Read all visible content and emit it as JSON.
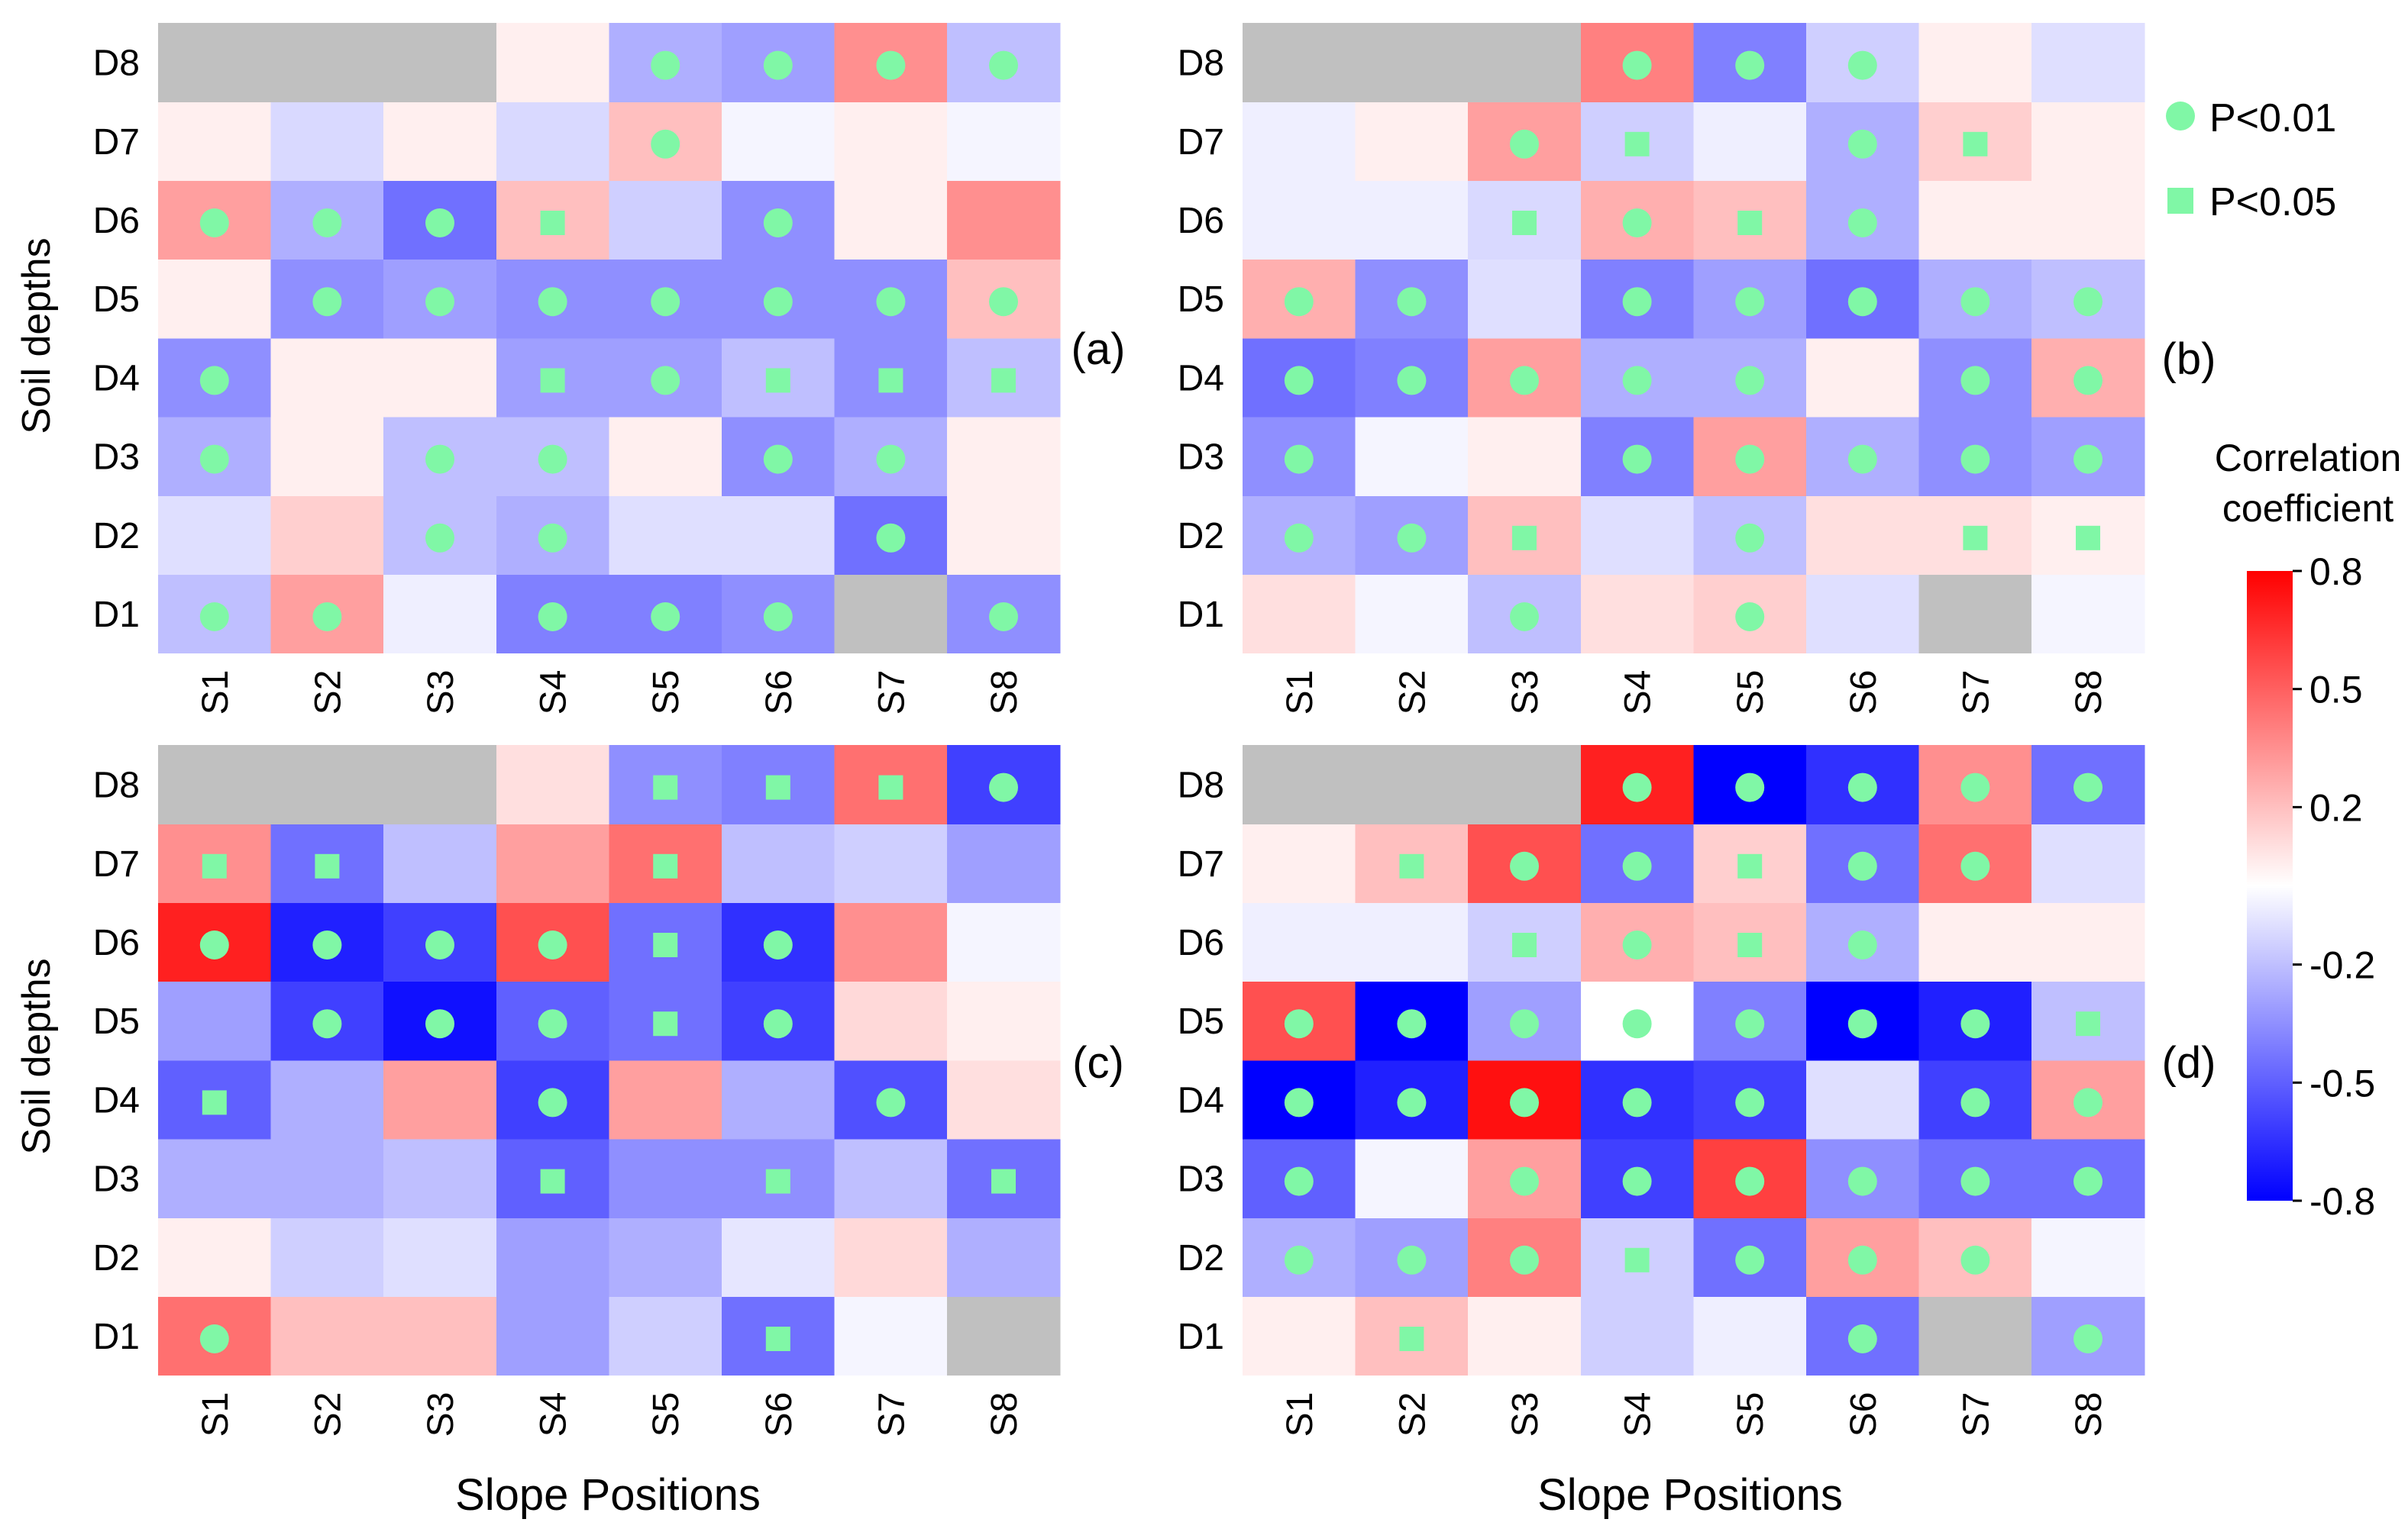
{
  "chart_data": {
    "type": "heatmap",
    "x_label": "Slope Positions",
    "y_label": "Soil depths",
    "x_categories": [
      "S1",
      "S2",
      "S3",
      "S4",
      "S5",
      "S6",
      "S7",
      "S8"
    ],
    "y_categories": [
      "D1",
      "D2",
      "D3",
      "D4",
      "D5",
      "D6",
      "D7",
      "D8"
    ],
    "colorbar": {
      "title_line1": "Correlation",
      "title_line2": "coefficient",
      "range": [
        -0.8,
        0.8
      ],
      "ticks": [
        0.8,
        0.5,
        0.2,
        -0.2,
        -0.5,
        -0.8
      ],
      "tick_labels": [
        "0.8",
        "0.5",
        "0.2",
        "-0.2",
        "-0.5",
        "-0.8"
      ],
      "colors": {
        "min": "#0000ff",
        "mid": "#ffffff",
        "max": "#ff0000",
        "missing": "#c0c0c0"
      }
    },
    "legend": {
      "items": [
        {
          "marker": "circle",
          "label": "P<0.01"
        },
        {
          "marker": "square",
          "label": "P<0.05"
        }
      ],
      "marker_color": "#80f7a6"
    },
    "marker_codes": {
      "c": "P<0.01",
      "s": "P<0.05",
      "": "not significant"
    },
    "panels": [
      {
        "label": "(a)",
        "values": [
          [
            -0.2,
            0.3,
            -0.05,
            -0.4,
            -0.4,
            -0.35,
            null,
            -0.35
          ],
          [
            -0.1,
            0.15,
            -0.2,
            -0.25,
            -0.1,
            -0.1,
            -0.45,
            0.05
          ],
          [
            -0.25,
            0.05,
            -0.2,
            -0.2,
            0.05,
            -0.35,
            -0.25,
            0.05
          ],
          [
            -0.35,
            0.05,
            0.05,
            -0.3,
            -0.3,
            -0.2,
            -0.35,
            -0.2
          ],
          [
            0.05,
            -0.35,
            -0.3,
            -0.35,
            -0.35,
            -0.35,
            -0.35,
            0.2
          ],
          [
            0.3,
            -0.25,
            -0.45,
            0.2,
            -0.15,
            -0.35,
            0.05,
            0.35
          ],
          [
            0.05,
            -0.12,
            0.05,
            -0.12,
            0.2,
            -0.03,
            0.05,
            -0.03
          ],
          [
            null,
            null,
            null,
            0.05,
            -0.25,
            -0.3,
            0.35,
            -0.2
          ]
        ],
        "markers": [
          [
            "c",
            "c",
            "",
            "c",
            "c",
            "c",
            "",
            "c"
          ],
          [
            "",
            "",
            "c",
            "c",
            "",
            "",
            "c",
            ""
          ],
          [
            "c",
            "",
            "c",
            "c",
            "",
            "c",
            "c",
            ""
          ],
          [
            "c",
            "",
            "",
            "s",
            "c",
            "s",
            "s",
            "s"
          ],
          [
            "",
            "c",
            "c",
            "c",
            "c",
            "c",
            "c",
            "c"
          ],
          [
            "c",
            "c",
            "c",
            "s",
            "",
            "c",
            "",
            ""
          ],
          [
            "",
            "",
            "",
            "",
            "c",
            "",
            "",
            ""
          ],
          [
            "",
            "",
            "",
            "",
            "c",
            "c",
            "c",
            "c"
          ]
        ]
      },
      {
        "label": "(b)",
        "values": [
          [
            0.1,
            -0.03,
            -0.2,
            0.1,
            0.15,
            -0.1,
            null,
            -0.03
          ],
          [
            -0.25,
            -0.3,
            0.2,
            -0.1,
            -0.2,
            0.1,
            0.1,
            0.05
          ],
          [
            -0.35,
            -0.03,
            0.05,
            -0.4,
            0.3,
            -0.25,
            -0.35,
            -0.3
          ],
          [
            -0.45,
            -0.4,
            0.3,
            -0.25,
            -0.25,
            0.05,
            -0.35,
            0.25
          ],
          [
            0.25,
            -0.35,
            -0.1,
            -0.4,
            -0.3,
            -0.45,
            -0.25,
            -0.2
          ],
          [
            -0.05,
            -0.05,
            -0.12,
            0.25,
            0.2,
            -0.25,
            0.05,
            0.05
          ],
          [
            -0.05,
            0.05,
            0.3,
            -0.15,
            -0.05,
            -0.25,
            0.15,
            0.05
          ],
          [
            null,
            null,
            null,
            0.4,
            -0.4,
            -0.15,
            0.05,
            -0.1
          ]
        ],
        "markers": [
          [
            "",
            "",
            "c",
            "",
            "c",
            "",
            "",
            ""
          ],
          [
            "c",
            "c",
            "s",
            "",
            "c",
            "",
            "s",
            "s"
          ],
          [
            "c",
            "",
            "",
            "c",
            "c",
            "c",
            "c",
            "c"
          ],
          [
            "c",
            "c",
            "c",
            "c",
            "c",
            "",
            "c",
            "c"
          ],
          [
            "c",
            "c",
            "",
            "c",
            "c",
            "c",
            "c",
            "c"
          ],
          [
            "",
            "",
            "s",
            "c",
            "s",
            "c",
            "",
            ""
          ],
          [
            "",
            "",
            "c",
            "s",
            "",
            "c",
            "s",
            ""
          ],
          [
            "",
            "",
            "",
            "c",
            "c",
            "c",
            "",
            ""
          ]
        ]
      },
      {
        "label": "(c)",
        "values": [
          [
            0.45,
            0.2,
            0.2,
            -0.3,
            -0.15,
            -0.45,
            -0.03,
            null
          ],
          [
            0.05,
            -0.15,
            -0.1,
            -0.3,
            -0.25,
            -0.08,
            0.12,
            -0.25
          ],
          [
            -0.25,
            -0.25,
            -0.2,
            -0.5,
            -0.35,
            -0.35,
            -0.2,
            -0.45
          ],
          [
            -0.5,
            -0.25,
            0.3,
            -0.6,
            0.3,
            -0.25,
            -0.55,
            0.1
          ],
          [
            -0.3,
            -0.6,
            -0.75,
            -0.5,
            -0.45,
            -0.6,
            0.12,
            0.05
          ],
          [
            0.7,
            -0.7,
            -0.6,
            0.55,
            -0.45,
            -0.65,
            0.35,
            -0.03
          ],
          [
            0.35,
            -0.45,
            -0.2,
            0.3,
            0.45,
            -0.2,
            -0.15,
            -0.3
          ],
          [
            null,
            null,
            null,
            0.1,
            -0.35,
            -0.4,
            0.45,
            -0.6
          ]
        ],
        "markers": [
          [
            "c",
            "",
            "",
            "",
            "",
            "s",
            "",
            ""
          ],
          [
            "",
            "",
            "",
            "",
            "",
            "",
            "",
            ""
          ],
          [
            "",
            "",
            "",
            "s",
            "",
            "s",
            "",
            "s"
          ],
          [
            "s",
            "",
            "",
            "c",
            "",
            "",
            "c",
            ""
          ],
          [
            "",
            "c",
            "c",
            "c",
            "s",
            "c",
            "",
            ""
          ],
          [
            "c",
            "c",
            "c",
            "c",
            "s",
            "c",
            "",
            ""
          ],
          [
            "s",
            "s",
            "",
            "",
            "s",
            "",
            "",
            ""
          ],
          [
            "",
            "",
            "",
            "",
            "s",
            "s",
            "s",
            "c"
          ]
        ]
      },
      {
        "label": "(d)",
        "values": [
          [
            0.05,
            0.2,
            0.05,
            -0.15,
            -0.05,
            -0.45,
            null,
            -0.3
          ],
          [
            -0.25,
            -0.3,
            0.4,
            -0.15,
            -0.45,
            0.3,
            0.2,
            -0.03
          ],
          [
            -0.5,
            -0.03,
            0.3,
            -0.6,
            0.6,
            -0.35,
            -0.45,
            -0.45
          ],
          [
            -0.8,
            -0.7,
            0.75,
            -0.65,
            -0.6,
            -0.1,
            -0.6,
            0.3
          ],
          [
            0.55,
            -0.8,
            -0.3,
            0.0,
            -0.4,
            -0.8,
            -0.7,
            -0.2
          ],
          [
            -0.05,
            -0.05,
            -0.15,
            0.25,
            0.2,
            -0.25,
            0.05,
            0.05
          ],
          [
            0.05,
            0.2,
            0.55,
            -0.45,
            0.15,
            -0.45,
            0.45,
            -0.1
          ],
          [
            null,
            null,
            null,
            0.7,
            -0.8,
            -0.65,
            0.35,
            -0.45
          ]
        ],
        "markers": [
          [
            "",
            "s",
            "",
            "",
            "",
            "c",
            "",
            "c"
          ],
          [
            "c",
            "c",
            "c",
            "s",
            "c",
            "c",
            "c",
            ""
          ],
          [
            "c",
            "",
            "c",
            "c",
            "c",
            "c",
            "c",
            "c"
          ],
          [
            "c",
            "c",
            "c",
            "c",
            "c",
            "",
            "c",
            "c"
          ],
          [
            "c",
            "c",
            "c",
            "c",
            "c",
            "c",
            "c",
            "s"
          ],
          [
            "",
            "",
            "s",
            "c",
            "s",
            "c",
            "",
            ""
          ],
          [
            "",
            "s",
            "c",
            "c",
            "s",
            "c",
            "c",
            ""
          ],
          [
            "",
            "",
            "",
            "c",
            "c",
            "c",
            "c",
            "c"
          ]
        ]
      }
    ]
  }
}
